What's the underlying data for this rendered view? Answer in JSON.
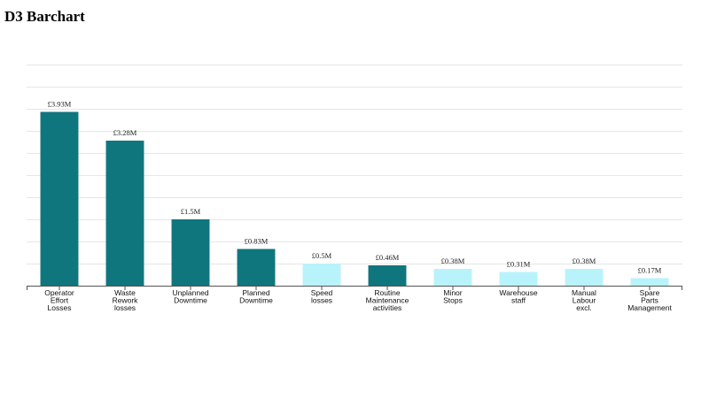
{
  "page": {
    "title": "D3 Barchart"
  },
  "chart_data": {
    "type": "bar",
    "title": "D3 Barchart",
    "xlabel": "",
    "ylabel": "",
    "ylim": [
      0,
      5
    ],
    "grid": true,
    "colors": {
      "high": "#10767e",
      "low": "#b8f3fb"
    },
    "categories": [
      "Operator Effort Losses",
      "Waste Rework losses",
      "Unplanned Downtime",
      "Planned Downtime",
      "Speed losses",
      "Routine Maintenance activities",
      "Minor Stops",
      "Warehouse staff",
      "Manual Labour excl.",
      "Spare Parts Management"
    ],
    "values": [
      3.93,
      3.28,
      1.5,
      0.83,
      0.5,
      0.46,
      0.38,
      0.31,
      0.38,
      0.17
    ],
    "value_labels": [
      "£3.93M",
      "£3.28M",
      "£1.5M",
      "£0.83M",
      "£0.5M",
      "£0.46M",
      "£0.38M",
      "£0.31M",
      "£0.38M",
      "£0.17M"
    ],
    "bar_color_keys": [
      "high",
      "high",
      "high",
      "high",
      "low",
      "high",
      "low",
      "low",
      "low",
      "low"
    ]
  }
}
